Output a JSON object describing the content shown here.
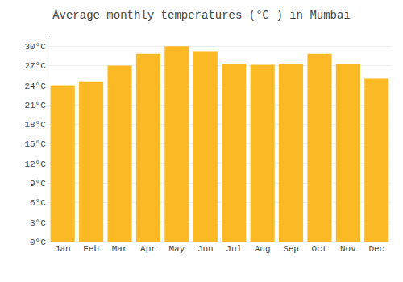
{
  "chart_data": {
    "type": "bar",
    "title": "Average monthly temperatures (°C ) in Mumbai",
    "categories": [
      "Jan",
      "Feb",
      "Mar",
      "Apr",
      "May",
      "Jun",
      "Jul",
      "Aug",
      "Sep",
      "Oct",
      "Nov",
      "Dec"
    ],
    "values": [
      23.9,
      24.5,
      27.0,
      28.8,
      30.0,
      29.2,
      27.3,
      27.1,
      27.3,
      28.8,
      27.2,
      25.0
    ],
    "color": "#FBBA25",
    "ylim": [
      0,
      31.5
    ],
    "yticks": [
      {
        "value": 0,
        "label": "0°C"
      },
      {
        "value": 3,
        "label": "3°C"
      },
      {
        "value": 6,
        "label": "6°C"
      },
      {
        "value": 9,
        "label": "9°C"
      },
      {
        "value": 12,
        "label": "12°C"
      },
      {
        "value": 15,
        "label": "15°C"
      },
      {
        "value": 18,
        "label": "18°C"
      },
      {
        "value": 21,
        "label": "21°C"
      },
      {
        "value": 24,
        "label": "24°C"
      },
      {
        "value": 27,
        "label": "27°C"
      },
      {
        "value": 30,
        "label": "30°C"
      }
    ],
    "grid": true
  }
}
